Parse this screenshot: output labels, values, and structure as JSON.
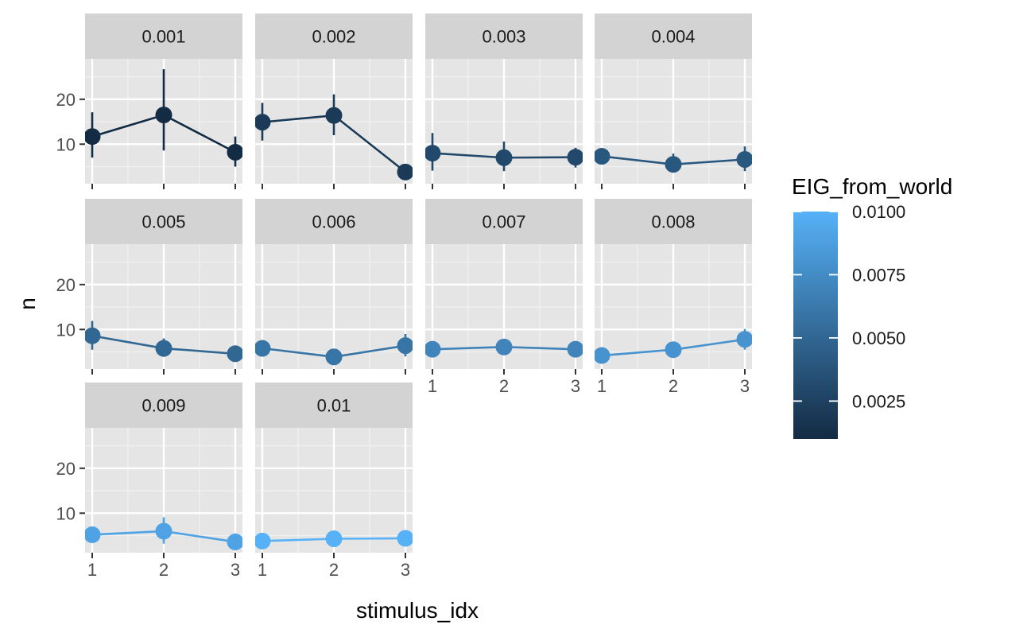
{
  "chart_data": {
    "type": "line",
    "facet_variable": "EIG_from_world",
    "xlabel": "stimulus_idx",
    "ylabel": "n",
    "x_ticks": [
      1,
      2,
      3
    ],
    "y_ticks": [
      10,
      20
    ],
    "xlim": [
      0.9,
      3.1
    ],
    "ylim": [
      1.2,
      29
    ],
    "colors": {
      "panel_bg": "#e5e5e5",
      "strip_bg": "#d3d3d3",
      "grid_major": "#ffffff",
      "grid_minor": "#f2f2f2",
      "low": "#132b43",
      "high": "#56b1f7"
    },
    "legend": {
      "title": "EIG_from_world",
      "position": "right",
      "min": 0.001,
      "max": 0.01,
      "breaks": [
        {
          "value": 0.0025,
          "label": "0.0025"
        },
        {
          "value": 0.005,
          "label": "0.0050"
        },
        {
          "value": 0.0075,
          "label": "0.0075"
        },
        {
          "value": 0.01,
          "label": "0.0100"
        }
      ]
    },
    "panels": [
      {
        "label": "0.001",
        "value": 0.001,
        "x": [
          1,
          2,
          3
        ],
        "y": [
          11.7,
          16.5,
          8.2
        ],
        "ymin": [
          7.0,
          8.6,
          5.0
        ],
        "ymax": [
          17.1,
          26.7,
          11.7
        ]
      },
      {
        "label": "0.002",
        "value": 0.002,
        "x": [
          1,
          2,
          3
        ],
        "y": [
          14.9,
          16.4,
          3.8
        ],
        "ymin": [
          10.8,
          12.0,
          3.4
        ],
        "ymax": [
          19.2,
          21.1,
          4.4
        ]
      },
      {
        "label": "0.003",
        "value": 0.003,
        "x": [
          1,
          2,
          3
        ],
        "y": [
          8.0,
          7.0,
          7.1
        ],
        "ymin": [
          4.1,
          4.0,
          4.8
        ],
        "ymax": [
          12.5,
          10.6,
          9.2
        ]
      },
      {
        "label": "0.004",
        "value": 0.004,
        "x": [
          1,
          2,
          3
        ],
        "y": [
          7.3,
          5.5,
          6.6
        ],
        "ymin": [
          5.6,
          4.2,
          4.0
        ],
        "ymax": [
          8.9,
          7.9,
          9.5
        ]
      },
      {
        "label": "0.005",
        "value": 0.005,
        "x": [
          1,
          2,
          3
        ],
        "y": [
          8.6,
          5.8,
          4.6
        ],
        "ymin": [
          5.5,
          3.9,
          3.8
        ],
        "ymax": [
          11.9,
          8.0,
          5.6
        ]
      },
      {
        "label": "0.006",
        "value": 0.006,
        "x": [
          1,
          2,
          3
        ],
        "y": [
          5.8,
          3.9,
          6.4
        ],
        "ymin": [
          4.7,
          3.3,
          4.0
        ],
        "ymax": [
          7.0,
          4.6,
          9.0
        ]
      },
      {
        "label": "0.007",
        "value": 0.007,
        "x": [
          1,
          2,
          3
        ],
        "y": [
          5.6,
          6.1,
          5.6
        ],
        "ymin": [
          4.6,
          5.0,
          4.7
        ],
        "ymax": [
          6.7,
          7.2,
          6.6
        ]
      },
      {
        "label": "0.008",
        "value": 0.008,
        "x": [
          1,
          2,
          3
        ],
        "y": [
          4.2,
          5.5,
          7.8
        ],
        "ymin": [
          3.5,
          4.4,
          5.5
        ],
        "ymax": [
          5.0,
          6.7,
          10.1
        ]
      },
      {
        "label": "0.009",
        "value": 0.009,
        "x": [
          1,
          2,
          3
        ],
        "y": [
          5.2,
          6.0,
          3.6
        ],
        "ymin": [
          4.3,
          3.2,
          2.4
        ],
        "ymax": [
          6.1,
          9.1,
          5.5
        ]
      },
      {
        "label": "0.01",
        "value": 0.01,
        "x": [
          1,
          2,
          3
        ],
        "y": [
          3.8,
          4.3,
          4.4
        ],
        "ymin": [
          3.2,
          3.6,
          3.7
        ],
        "ymax": [
          4.4,
          5.0,
          5.1
        ]
      }
    ]
  }
}
